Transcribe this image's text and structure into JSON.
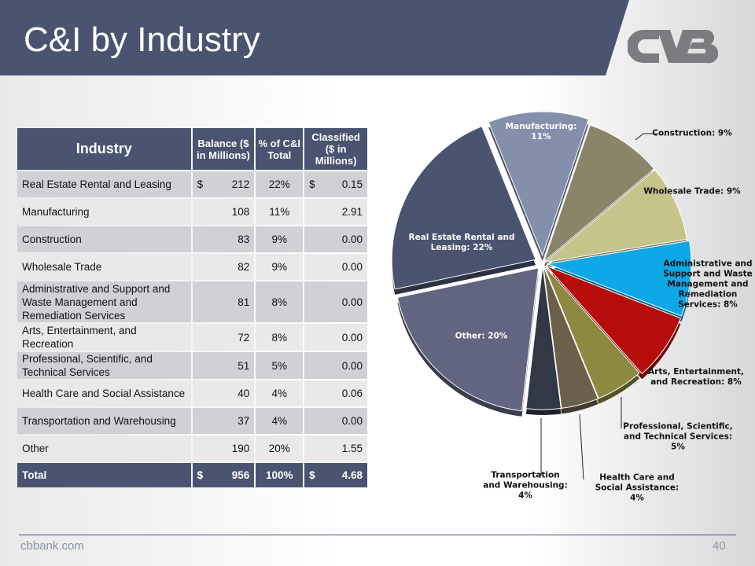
{
  "slide": {
    "title": "C&I by Industry",
    "logo_text": "CVB",
    "footer_site": "cbbank.com",
    "page_number": "40"
  },
  "colors": {
    "banner": "#4a5470",
    "accent_text": "#8a93a8"
  },
  "table": {
    "headers": {
      "industry": "Industry",
      "balance": "Balance ($ in Millions)",
      "pct": "% of C&I Total",
      "classified": "Classified ($ in Millions)"
    },
    "rows": [
      {
        "industry": "Real Estate Rental and Leasing",
        "balance_prefix": "$",
        "balance": "212",
        "pct": "22%",
        "classified_prefix": "$",
        "classified": "0.15"
      },
      {
        "industry": "Manufacturing",
        "balance_prefix": "",
        "balance": "108",
        "pct": "11%",
        "classified_prefix": "",
        "classified": "2.91"
      },
      {
        "industry": "Construction",
        "balance_prefix": "",
        "balance": "83",
        "pct": "9%",
        "classified_prefix": "",
        "classified": "0.00"
      },
      {
        "industry": "Wholesale Trade",
        "balance_prefix": "",
        "balance": "82",
        "pct": "9%",
        "classified_prefix": "",
        "classified": "0.00"
      },
      {
        "industry": "Administrative and Support and Waste Management and Remediation Services",
        "balance_prefix": "",
        "balance": "81",
        "pct": "8%",
        "classified_prefix": "",
        "classified": "0.00"
      },
      {
        "industry": "Arts, Entertainment, and Recreation",
        "balance_prefix": "",
        "balance": "72",
        "pct": "8%",
        "classified_prefix": "",
        "classified": "0.00"
      },
      {
        "industry": "Professional, Scientific, and Technical Services",
        "balance_prefix": "",
        "balance": "51",
        "pct": "5%",
        "classified_prefix": "",
        "classified": "0.00"
      },
      {
        "industry": "Health Care and Social Assistance",
        "balance_prefix": "",
        "balance": "40",
        "pct": "4%",
        "classified_prefix": "",
        "classified": "0.06"
      },
      {
        "industry": "Transportation and Warehousing",
        "balance_prefix": "",
        "balance": "37",
        "pct": "4%",
        "classified_prefix": "",
        "classified": "0.00"
      },
      {
        "industry": "Other",
        "balance_prefix": "",
        "balance": "190",
        "pct": "20%",
        "classified_prefix": "",
        "classified": "1.55"
      }
    ],
    "total": {
      "industry": "Total",
      "balance_prefix": "$",
      "balance": "956",
      "pct": "100%",
      "classified_prefix": "$",
      "classified": "4.68"
    }
  },
  "chart_data": {
    "type": "pie",
    "style": "3d-exploded",
    "slices": [
      {
        "name": "Manufacturing",
        "value": 108,
        "label": "Manufacturing: 11%",
        "color": "#8490ab"
      },
      {
        "name": "Construction",
        "value": 83,
        "label": "Construction: 9%",
        "color": "#8a8468"
      },
      {
        "name": "Wholesale Trade",
        "value": 82,
        "label": "Wholesale Trade: 9%",
        "color": "#c6c48a"
      },
      {
        "name": "Administrative and Support and Waste Management and Remediation Services",
        "value": 81,
        "label": "Administrative and Support and Waste Management and Remediation Services: 8%",
        "color": "#0ea8e6"
      },
      {
        "name": "Arts, Entertainment, and Recreation",
        "value": 72,
        "label": "Arts, Entertainment, and Recreation: 8%",
        "color": "#b80c0c"
      },
      {
        "name": "Professional, Scientific, and Technical Services",
        "value": 51,
        "label": "Professional, Scientific, and Technical Services: 5%",
        "color": "#8b8a40"
      },
      {
        "name": "Health Care and Social Assistance",
        "value": 40,
        "label": "Health Care and Social Assistance: 4%",
        "color": "#6b604a"
      },
      {
        "name": "Transportation and Warehousing",
        "value": 37,
        "label": "Transportation and Warehousing: 4%",
        "color": "#323846"
      },
      {
        "name": "Other",
        "value": 190,
        "label": "Other: 20%",
        "color": "#62657f"
      },
      {
        "name": "Real Estate Rental and Leasing",
        "value": 212,
        "label": "Real Estate Rental and Leasing: 22%",
        "color": "#4a5470"
      }
    ]
  }
}
